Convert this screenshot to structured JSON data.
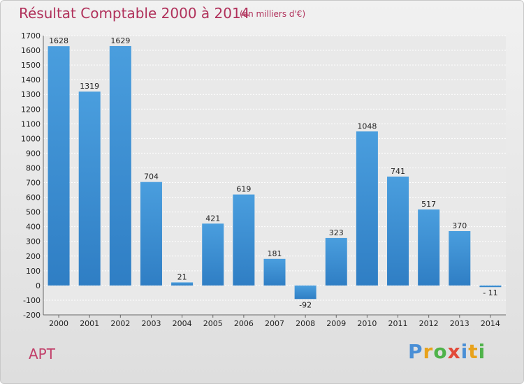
{
  "header": {
    "title": "Résultat Comptable 2000 à 2014",
    "subtitle": "(en milliers d'€)"
  },
  "footer": {
    "commune": "APT",
    "brand_letters": [
      {
        "char": "P",
        "color": "#4a8fd6"
      },
      {
        "char": "r",
        "color": "#e8a21c"
      },
      {
        "char": "o",
        "color": "#4fb34a"
      },
      {
        "char": "x",
        "color": "#e24a3a"
      },
      {
        "char": "i",
        "color": "#4a8fd6"
      },
      {
        "char": "t",
        "color": "#e8a21c"
      },
      {
        "char": "i",
        "color": "#4fb34a"
      }
    ]
  },
  "chart_data": {
    "type": "bar",
    "title": "Résultat Comptable 2000 à 2014",
    "subtitle": "(en milliers d'€)",
    "categories": [
      "2000",
      "2001",
      "2002",
      "2003",
      "2004",
      "2005",
      "2006",
      "2007",
      "2008",
      "2009",
      "2010",
      "2011",
      "2012",
      "2013",
      "2014"
    ],
    "values": [
      1628,
      1319,
      1629,
      704,
      21,
      421,
      619,
      181,
      -92,
      323,
      1048,
      741,
      517,
      370,
      -11
    ],
    "value_labels": [
      "1628",
      "1319",
      "1629",
      "704",
      "21",
      "421",
      "619",
      "181",
      "-92",
      "323",
      "1048",
      "741",
      "517",
      "370",
      "- 11"
    ],
    "ylim": [
      -200,
      1700
    ],
    "yticks": [
      -200,
      -100,
      0,
      100,
      200,
      300,
      400,
      500,
      600,
      700,
      800,
      900,
      1000,
      1100,
      1200,
      1300,
      1400,
      1500,
      1600,
      1700
    ],
    "grid": true,
    "bar_color": "#4a9ede",
    "bar_color_dark": "#2f7ec4"
  }
}
